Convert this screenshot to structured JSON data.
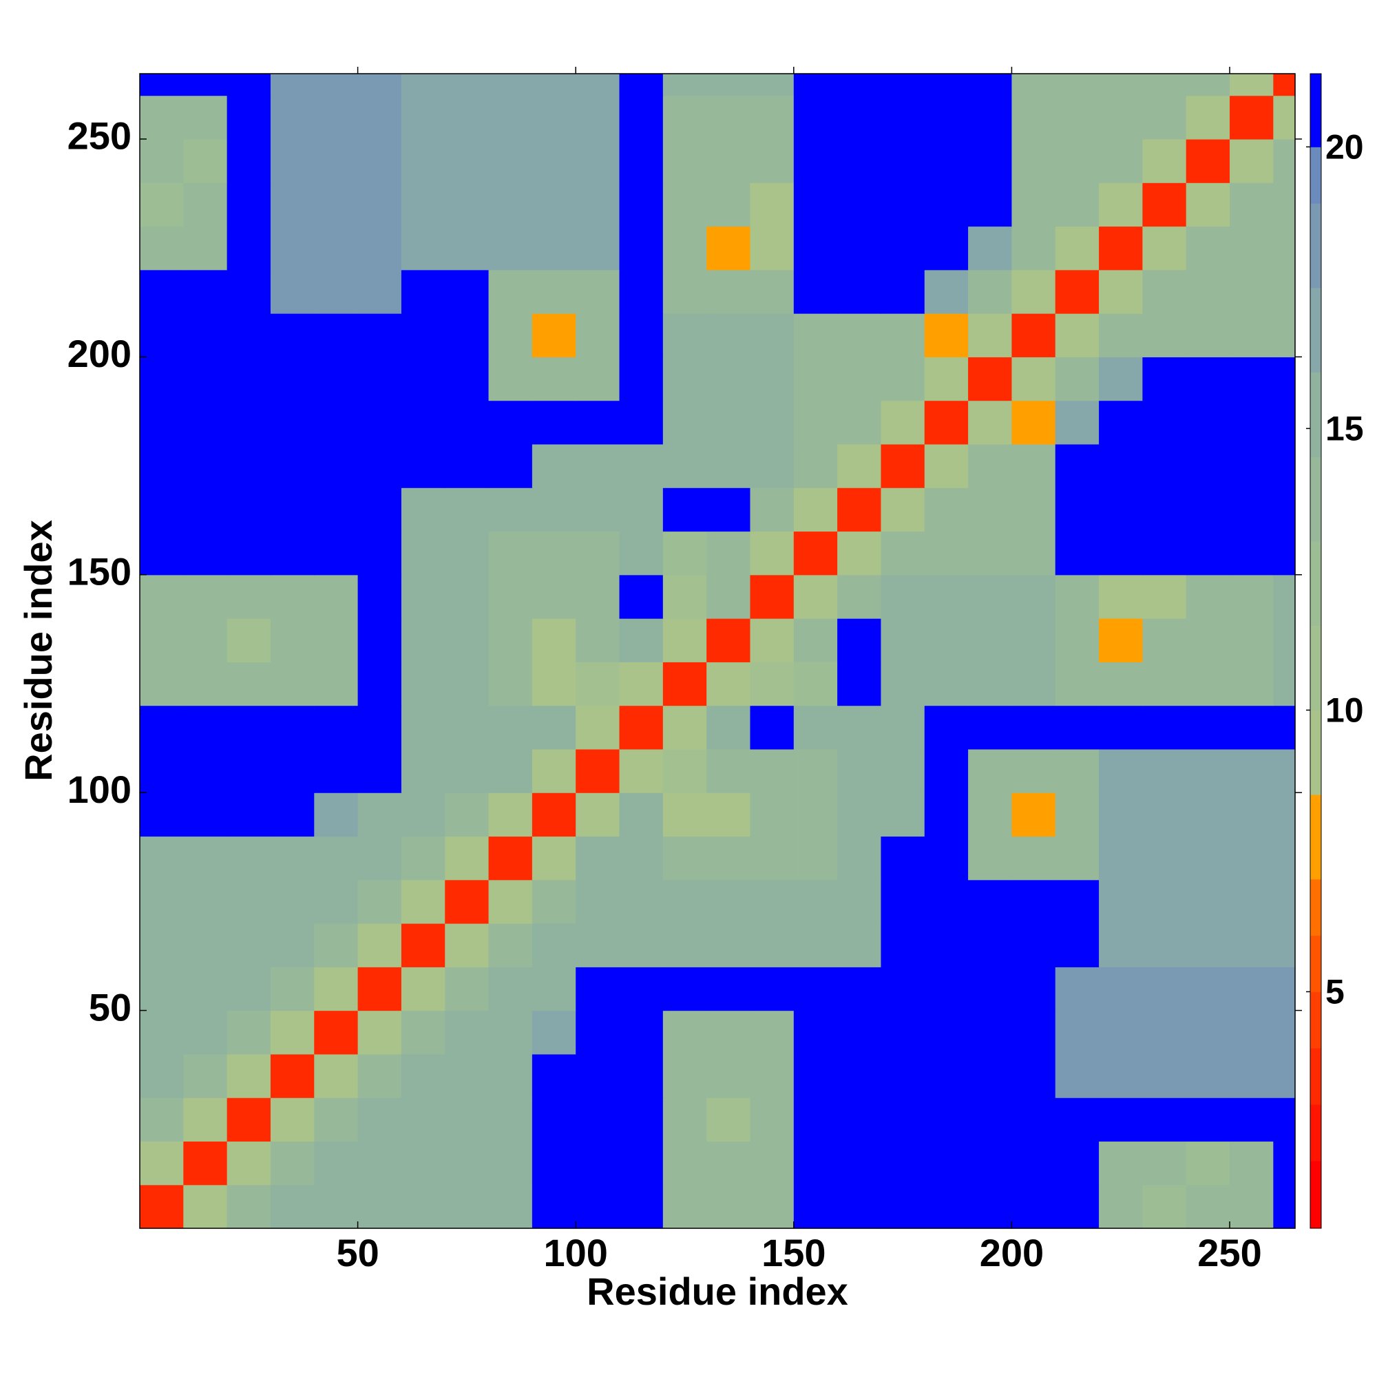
{
  "chart_data": {
    "type": "heatmap",
    "x_label": "Residue index",
    "y_label": "Residue index",
    "x_bins": [
      0,
      10,
      20,
      30,
      40,
      50,
      60,
      70,
      80,
      90,
      100,
      110,
      120,
      130,
      140,
      150,
      160,
      170,
      180,
      190,
      200,
      210,
      220,
      230,
      240,
      250,
      260,
      265
    ],
    "y_bins": [
      0,
      10,
      20,
      30,
      40,
      50,
      60,
      70,
      80,
      90,
      100,
      110,
      120,
      130,
      140,
      150,
      160,
      170,
      180,
      190,
      200,
      210,
      220,
      230,
      240,
      250,
      260,
      265
    ],
    "z": [
      [
        3,
        9,
        14,
        15,
        15,
        15,
        15,
        15,
        15,
        21,
        21,
        21,
        14,
        14,
        14,
        21,
        21,
        21,
        21,
        21,
        21,
        21,
        14,
        12,
        14,
        14,
        21
      ],
      [
        9,
        3,
        9,
        14,
        15,
        15,
        15,
        15,
        15,
        21,
        21,
        21,
        14,
        14,
        14,
        21,
        21,
        21,
        21,
        21,
        21,
        21,
        14,
        14,
        12,
        14,
        21
      ],
      [
        14,
        9,
        3,
        9,
        14,
        15,
        15,
        15,
        15,
        21,
        21,
        21,
        14,
        10,
        14,
        21,
        21,
        21,
        21,
        21,
        21,
        21,
        21,
        21,
        21,
        21,
        21
      ],
      [
        15,
        14,
        9,
        3,
        9,
        14,
        15,
        15,
        15,
        21,
        21,
        21,
        14,
        14,
        14,
        21,
        21,
        21,
        21,
        21,
        21,
        18,
        18,
        18,
        18,
        18,
        18
      ],
      [
        15,
        15,
        14,
        9,
        3,
        9,
        14,
        15,
        15,
        16,
        21,
        21,
        14,
        14,
        14,
        21,
        21,
        21,
        21,
        21,
        21,
        18,
        18,
        18,
        18,
        18,
        18
      ],
      [
        15,
        15,
        15,
        14,
        9,
        3,
        9,
        14,
        15,
        15,
        21,
        21,
        21,
        21,
        21,
        21,
        21,
        21,
        21,
        21,
        21,
        18,
        18,
        18,
        18,
        18,
        18
      ],
      [
        15,
        15,
        15,
        15,
        14,
        9,
        3,
        9,
        14,
        15,
        15,
        15,
        15,
        15,
        15,
        15,
        15,
        21,
        21,
        21,
        21,
        21,
        17,
        17,
        17,
        17,
        17
      ],
      [
        15,
        15,
        15,
        15,
        15,
        14,
        9,
        3,
        9,
        14,
        15,
        15,
        15,
        15,
        15,
        15,
        15,
        21,
        21,
        21,
        21,
        21,
        17,
        17,
        17,
        17,
        17
      ],
      [
        15,
        15,
        15,
        15,
        15,
        15,
        14,
        9,
        3,
        9,
        15,
        15,
        14,
        14,
        14,
        14,
        15,
        21,
        21,
        14,
        14,
        14,
        17,
        17,
        17,
        17,
        17
      ],
      [
        21,
        21,
        21,
        21,
        16,
        15,
        15,
        14,
        9,
        3,
        9,
        15,
        9,
        9,
        14,
        14,
        15,
        15,
        21,
        14,
        8,
        14,
        17,
        17,
        17,
        17,
        17
      ],
      [
        21,
        21,
        21,
        21,
        21,
        21,
        15,
        15,
        15,
        9,
        3,
        9,
        10,
        14,
        14,
        14,
        15,
        15,
        21,
        14,
        14,
        14,
        17,
        17,
        17,
        17,
        17
      ],
      [
        21,
        21,
        21,
        21,
        21,
        21,
        15,
        15,
        15,
        15,
        9,
        3,
        9,
        15,
        21,
        15,
        15,
        15,
        21,
        21,
        21,
        21,
        21,
        21,
        21,
        21,
        21
      ],
      [
        14,
        14,
        14,
        14,
        14,
        21,
        15,
        15,
        14,
        9,
        10,
        9,
        3,
        9,
        10,
        12,
        21,
        15,
        15,
        15,
        15,
        14,
        14,
        14,
        14,
        14,
        15
      ],
      [
        14,
        14,
        10,
        14,
        14,
        21,
        15,
        15,
        14,
        9,
        14,
        15,
        9,
        3,
        9,
        14,
        21,
        15,
        15,
        15,
        15,
        14,
        8,
        14,
        14,
        14,
        15
      ],
      [
        14,
        14,
        14,
        14,
        14,
        21,
        15,
        15,
        14,
        14,
        14,
        21,
        10,
        14,
        3,
        9,
        14,
        15,
        15,
        15,
        15,
        14,
        9,
        9,
        14,
        14,
        15
      ],
      [
        21,
        21,
        21,
        21,
        21,
        21,
        15,
        15,
        14,
        14,
        14,
        15,
        12,
        14,
        9,
        3,
        9,
        14,
        14,
        14,
        14,
        21,
        21,
        21,
        21,
        21,
        21
      ],
      [
        21,
        21,
        21,
        21,
        21,
        21,
        15,
        15,
        15,
        15,
        15,
        15,
        21,
        21,
        14,
        9,
        3,
        9,
        14,
        14,
        14,
        21,
        21,
        21,
        21,
        21,
        21
      ],
      [
        21,
        21,
        21,
        21,
        21,
        21,
        21,
        21,
        21,
        15,
        15,
        15,
        15,
        15,
        15,
        14,
        9,
        3,
        9,
        14,
        14,
        21,
        21,
        21,
        21,
        21,
        21
      ],
      [
        21,
        21,
        21,
        21,
        21,
        21,
        21,
        21,
        21,
        21,
        21,
        21,
        15,
        15,
        15,
        14,
        14,
        9,
        3,
        9,
        8,
        16,
        21,
        21,
        21,
        21,
        21
      ],
      [
        21,
        21,
        21,
        21,
        21,
        21,
        21,
        21,
        14,
        14,
        14,
        21,
        15,
        15,
        15,
        14,
        14,
        14,
        9,
        3,
        9,
        14,
        16,
        21,
        21,
        21,
        21
      ],
      [
        21,
        21,
        21,
        21,
        21,
        21,
        21,
        21,
        14,
        8,
        14,
        21,
        15,
        15,
        15,
        14,
        14,
        14,
        8,
        9,
        3,
        9,
        14,
        14,
        14,
        14,
        14
      ],
      [
        21,
        21,
        21,
        18,
        18,
        18,
        21,
        21,
        14,
        14,
        14,
        21,
        14,
        14,
        14,
        21,
        21,
        21,
        16,
        14,
        9,
        3,
        9,
        14,
        14,
        14,
        14
      ],
      [
        14,
        14,
        21,
        18,
        18,
        18,
        17,
        17,
        17,
        17,
        17,
        21,
        14,
        8,
        9,
        21,
        21,
        21,
        21,
        16,
        14,
        9,
        3,
        9,
        14,
        14,
        14
      ],
      [
        12,
        14,
        21,
        18,
        18,
        18,
        17,
        17,
        17,
        17,
        17,
        21,
        14,
        14,
        9,
        21,
        21,
        21,
        21,
        21,
        14,
        14,
        9,
        3,
        9,
        14,
        14
      ],
      [
        14,
        12,
        21,
        18,
        18,
        18,
        17,
        17,
        17,
        17,
        17,
        21,
        14,
        14,
        14,
        21,
        21,
        21,
        21,
        21,
        14,
        14,
        14,
        9,
        3,
        9,
        14
      ],
      [
        14,
        14,
        21,
        18,
        18,
        18,
        17,
        17,
        17,
        17,
        17,
        21,
        14,
        14,
        14,
        21,
        21,
        21,
        21,
        21,
        14,
        14,
        14,
        14,
        9,
        3,
        9
      ],
      [
        21,
        21,
        21,
        18,
        18,
        18,
        17,
        17,
        17,
        17,
        17,
        21,
        15,
        15,
        15,
        21,
        21,
        21,
        21,
        21,
        14,
        14,
        14,
        14,
        14,
        9,
        3
      ]
    ],
    "xlim": [
      0,
      265
    ],
    "ylim": [
      0,
      265
    ],
    "xticks": [
      50,
      100,
      150,
      200,
      250
    ],
    "yticks": [
      50,
      100,
      150,
      200,
      250
    ],
    "colorbar": {
      "levels": [
        0.8,
        2,
        3,
        4,
        5,
        6,
        7,
        8.5,
        10,
        11.5,
        13,
        14.5,
        16,
        17.5,
        19,
        20,
        21.3
      ],
      "colors": [
        "#ff0000",
        "#ff1500",
        "#ff2a00",
        "#ff4000",
        "#ff5500",
        "#ff7000",
        "#ffa000",
        "#a9c38b",
        "#a3c190",
        "#9dbd95",
        "#97b99a",
        "#90b3a0",
        "#86a8ab",
        "#7a9ab4",
        "#6b8bbd",
        "#0000ff"
      ],
      "ticks": [
        5,
        10,
        15,
        20
      ]
    }
  }
}
